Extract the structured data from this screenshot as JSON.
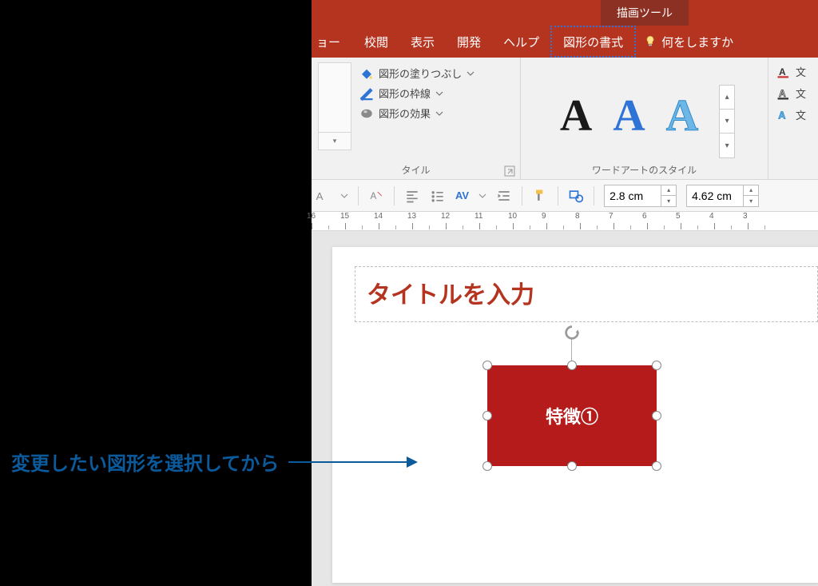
{
  "colors": {
    "ribbon": "#b53420",
    "tooltab": "#8b3022",
    "accent": "#2e74d6",
    "shape_fill": "#b41b1a",
    "annot": "#0a5a9c",
    "title": "#b53420"
  },
  "tooltab": {
    "label": "描画ツール"
  },
  "tabs": {
    "partial": "ョー",
    "review": "校閲",
    "view": "表示",
    "developer": "開発",
    "help": "ヘルプ",
    "format": "図形の書式",
    "tellme": "何をしますか"
  },
  "ribbon": {
    "shape": {
      "fill": "図形の塗りつぶし",
      "outline": "図形の枠線",
      "effects": "図形の効果",
      "group_label": "タイル"
    },
    "wordart": {
      "group_label": "ワードアートのスタイル",
      "sample": "A"
    },
    "textfx": {
      "fill": "文",
      "outline": "文",
      "effects": "文"
    }
  },
  "quickbar": {
    "height": "2.8 cm",
    "width": "4.62 cm"
  },
  "ruler": {
    "ticks": [
      16,
      15,
      14,
      13,
      12,
      11,
      10,
      9,
      8,
      7,
      6,
      5,
      4,
      3
    ]
  },
  "slide": {
    "title_placeholder": "タイトルを入力",
    "shape_text": "特徴①"
  },
  "annotation": {
    "text": "変更したい図形を選択してから"
  }
}
